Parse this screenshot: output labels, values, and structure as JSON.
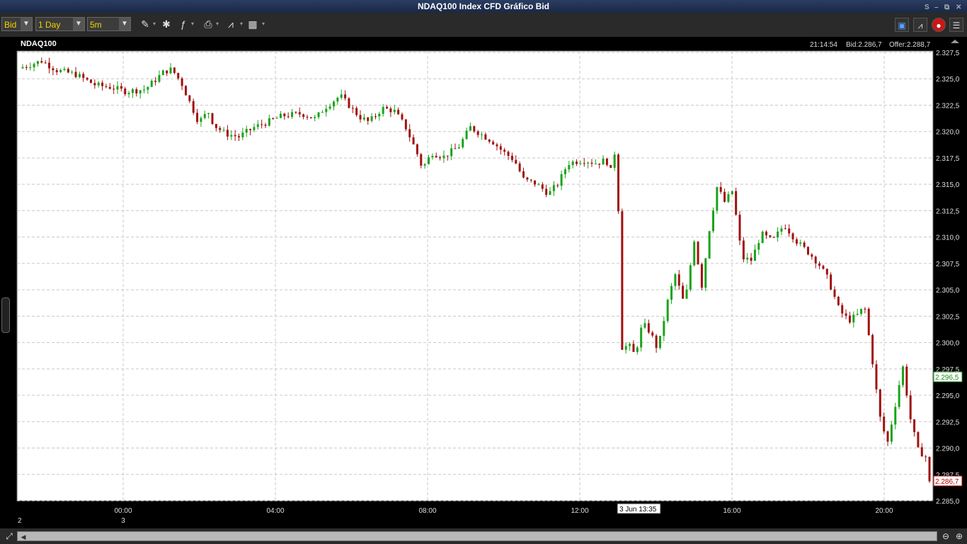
{
  "window": {
    "title": "NDAQ100 Index CFD Gráfico Bid",
    "controls": [
      "S",
      "–",
      "⧉",
      "✕"
    ]
  },
  "toolbar": {
    "price_type": "Bid",
    "range": "1 Day",
    "interval": "5m",
    "tools": [
      "pencil-icon",
      "pin-icon",
      "indicator-icon",
      "print-icon",
      "chart-type-icon",
      "grid-icon"
    ],
    "right_icons": [
      "layout-icon",
      "line-chart-icon",
      "alert-icon",
      "list-icon"
    ]
  },
  "chart": {
    "symbol": "NDAQ100",
    "time": "21:14:54",
    "bid": "Bid:2.286,7",
    "offer": "Offer:2.288,7",
    "current_label": "2.296,5",
    "last_label": "2.286,7",
    "cursor_label": "3 Jun 13:35",
    "colors": {
      "up": "#1aa31a",
      "down": "#a01010",
      "current": "#1a8a1a",
      "last": "#b00000"
    }
  },
  "chart_data": {
    "type": "candlestick",
    "title": "NDAQ100",
    "y_ticks": [
      "2.327,5",
      "2.325,0",
      "2.322,5",
      "2.320,0",
      "2.317,5",
      "2.315,0",
      "2.312,5",
      "2.310,0",
      "2.307,5",
      "2.305,0",
      "2.302,5",
      "2.300,0",
      "2.297,5",
      "2.295,0",
      "2.292,5",
      "2.290,0",
      "2.287,5",
      "2.285,0"
    ],
    "ylim": [
      2285,
      2327.5
    ],
    "x_ticks": [
      "00:00",
      "04:00",
      "08:00",
      "12:00",
      "16:00",
      "20:00"
    ],
    "day_labels": [
      "2",
      "3"
    ],
    "grid": true,
    "close_path": [
      [
        0,
        2326.0
      ],
      [
        1.2,
        2326.7
      ],
      [
        2,
        2325.8
      ],
      [
        3,
        2325.4
      ],
      [
        4,
        2324.4
      ],
      [
        4.8,
        2324.2
      ],
      [
        5.6,
        2323.8
      ],
      [
        6.6,
        2324.0
      ],
      [
        7.6,
        2325.7
      ],
      [
        8.0,
        2325.9
      ],
      [
        8.5,
        2324.6
      ],
      [
        9.0,
        2322.5
      ],
      [
        9.4,
        2320.9
      ],
      [
        9.9,
        2321.9
      ],
      [
        10.2,
        2320.6
      ],
      [
        10.8,
        2319.8
      ],
      [
        11.5,
        2319.5
      ],
      [
        12.3,
        2320.4
      ],
      [
        13,
        2320.9
      ],
      [
        13.8,
        2321.5
      ],
      [
        14.8,
        2321.7
      ],
      [
        15.5,
        2321.2
      ],
      [
        16.0,
        2322.3
      ],
      [
        16.8,
        2323.4
      ],
      [
        17.2,
        2322.6
      ],
      [
        17.8,
        2321.4
      ],
      [
        18.3,
        2320.9
      ],
      [
        19.0,
        2322.2
      ],
      [
        19.6,
        2322.0
      ],
      [
        20.2,
        2320.5
      ],
      [
        20.8,
        2318.0
      ],
      [
        21.1,
        2316.5
      ],
      [
        21.6,
        2318.0
      ],
      [
        22.2,
        2317.6
      ],
      [
        23.0,
        2318.6
      ],
      [
        23.6,
        2320.4
      ],
      [
        24.3,
        2319.6
      ],
      [
        24.8,
        2319.0
      ],
      [
        25.3,
        2318.1
      ],
      [
        25.9,
        2317.3
      ],
      [
        26.4,
        2315.4
      ],
      [
        27.0,
        2315.1
      ],
      [
        27.7,
        2314.1
      ],
      [
        28.2,
        2315.1
      ],
      [
        28.7,
        2317.0
      ],
      [
        29.5,
        2317.3
      ],
      [
        30.2,
        2317.0
      ],
      [
        30.7,
        2317.3
      ],
      [
        31.0,
        2316.0
      ],
      [
        31.3,
        2320.3
      ],
      [
        31.4,
        2299.5
      ],
      [
        31.9,
        2299.7
      ],
      [
        32.2,
        2298.8
      ],
      [
        32.6,
        2301.8
      ],
      [
        33.0,
        2301.0
      ],
      [
        33.4,
        2299.3
      ],
      [
        33.9,
        2303.8
      ],
      [
        34.3,
        2306.5
      ],
      [
        34.8,
        2303.5
      ],
      [
        35.3,
        2309.8
      ],
      [
        35.7,
        2305.4
      ],
      [
        36.1,
        2310.8
      ],
      [
        36.5,
        2314.8
      ],
      [
        36.9,
        2313.3
      ],
      [
        37.3,
        2314.4
      ],
      [
        37.8,
        2308.0
      ],
      [
        38.3,
        2307.8
      ],
      [
        38.8,
        2310.3
      ],
      [
        39.4,
        2309.6
      ],
      [
        40.0,
        2311.2
      ],
      [
        40.7,
        2309.5
      ],
      [
        41.3,
        2308.5
      ],
      [
        41.8,
        2307.5
      ],
      [
        42.3,
        2306.0
      ],
      [
        42.9,
        2303.0
      ],
      [
        43.4,
        2302.1
      ],
      [
        43.9,
        2302.7
      ],
      [
        44.2,
        2303.5
      ],
      [
        44.6,
        2298.5
      ],
      [
        45.0,
        2293.0
      ],
      [
        45.4,
        2290.4
      ],
      [
        45.8,
        2294.0
      ],
      [
        46.2,
        2297.8
      ],
      [
        46.6,
        2292.8
      ],
      [
        47.0,
        2289.8
      ],
      [
        47.4,
        2289.2
      ],
      [
        47.6,
        2286.7
      ]
    ]
  }
}
